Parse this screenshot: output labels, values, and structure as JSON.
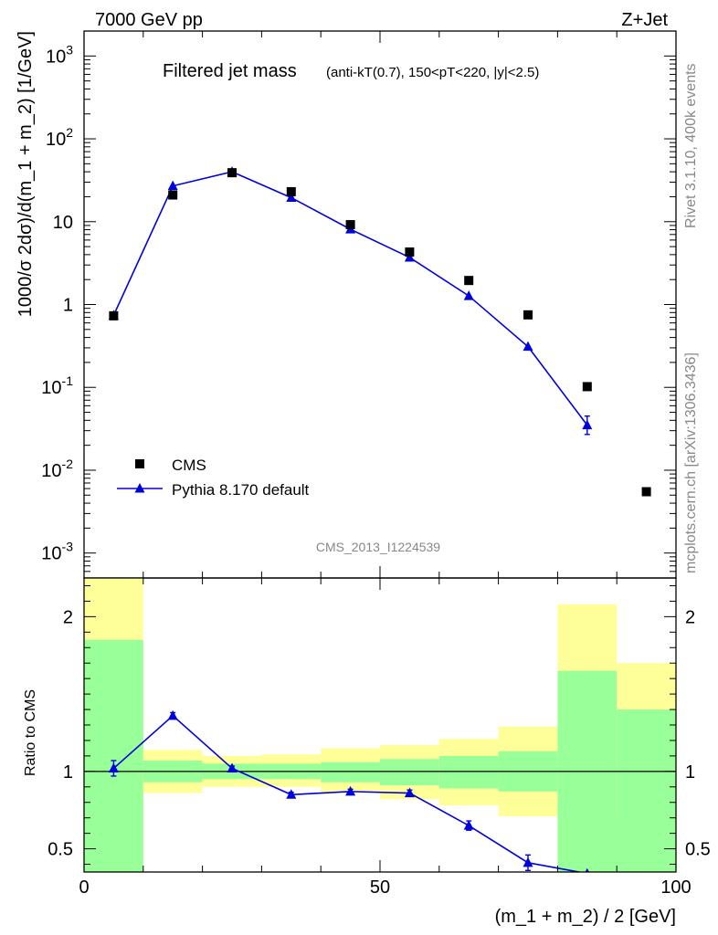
{
  "header": {
    "energy_label": "7000 GeV pp",
    "process_label": "Z+Jet"
  },
  "side_labels": {
    "rivet": "Rivet 3.1.10,  400k events",
    "mcplots": "mcplots.cern.ch [arXiv:1306.3436]"
  },
  "colors": {
    "data_marker": "#000000",
    "mc_line": "#0000dd",
    "band_inner": "#99ff99",
    "band_outer": "#ffff99",
    "ratio_line": "#000000"
  },
  "chart_data": [
    {
      "type": "scatter",
      "panel": "main",
      "title": "Filtered jet mass",
      "subtitle": "(anti-kT(0.7), 150<pT<220, |y|<2.5)",
      "xlabel": "(m_1 + m_2) / 2 [GeV]",
      "ylabel": "1000/σ 2dσ)/d(m_1 + m_2) [1/GeV]",
      "yscale": "log",
      "xlim": [
        0,
        100
      ],
      "ylim": [
        0.0005,
        2000
      ],
      "xticks": [
        0,
        50,
        100
      ],
      "yticks": [
        {
          "value": 0.001,
          "base": "10",
          "exp": "-3"
        },
        {
          "value": 0.01,
          "base": "10",
          "exp": "-2"
        },
        {
          "value": 0.1,
          "base": "10",
          "exp": "-1"
        },
        {
          "value": 1,
          "base": "1",
          "exp": ""
        },
        {
          "value": 10,
          "base": "10",
          "exp": ""
        },
        {
          "value": 100,
          "base": "10",
          "exp": "2"
        },
        {
          "value": 1000,
          "base": "10",
          "exp": "3"
        }
      ],
      "analysis_id": "CMS_2013_I1224539",
      "legend_position": "lower-left",
      "series": [
        {
          "name": "CMS",
          "marker": "square",
          "x": [
            5,
            15,
            25,
            35,
            45,
            55,
            65,
            75,
            85,
            95
          ],
          "values": [
            0.73,
            21,
            39,
            23,
            9.2,
            4.3,
            1.95,
            0.75,
            0.102,
            0.0055
          ]
        },
        {
          "name": "Pythia 8.170 default",
          "marker": "triangle",
          "line": true,
          "x": [
            5,
            15,
            25,
            35,
            45,
            55,
            65,
            75,
            85
          ],
          "values": [
            0.74,
            27,
            40,
            19.5,
            8.1,
            3.7,
            1.27,
            0.31,
            0.035
          ],
          "err_low": [
            0.02,
            0.4,
            0.5,
            0.3,
            0.12,
            0.07,
            0.04,
            0.015,
            0.008
          ],
          "err_high": [
            0.02,
            0.4,
            0.5,
            0.3,
            0.12,
            0.07,
            0.04,
            0.015,
            0.01
          ]
        }
      ]
    },
    {
      "type": "line",
      "panel": "ratio",
      "ylabel": "Ratio to CMS",
      "xlim": [
        0,
        100
      ],
      "ylim": [
        0.35,
        2.25
      ],
      "xticks": [
        0,
        50,
        100
      ],
      "yticks": [
        0.5,
        1,
        2
      ],
      "reference": 1,
      "bands": {
        "bin_edges": [
          0,
          10,
          20,
          30,
          40,
          50,
          60,
          70,
          80,
          90,
          100
        ],
        "inner_low": [
          0.35,
          0.93,
          0.95,
          0.95,
          0.93,
          0.91,
          0.89,
          0.87,
          0.35,
          0.35
        ],
        "inner_high": [
          1.85,
          1.07,
          1.05,
          1.05,
          1.06,
          1.08,
          1.1,
          1.13,
          1.65,
          1.4
        ],
        "outer_low": [
          0.35,
          0.86,
          0.9,
          0.9,
          0.86,
          0.82,
          0.78,
          0.71,
          0.4,
          0.72
        ],
        "outer_high": [
          2.25,
          1.14,
          1.1,
          1.11,
          1.15,
          1.17,
          1.21,
          1.29,
          2.08,
          1.7
        ]
      },
      "series": [
        {
          "name": "Pythia 8.170 default",
          "x": [
            5,
            15,
            25,
            35,
            45,
            55,
            65,
            75,
            85
          ],
          "values": [
            1.02,
            1.36,
            1.02,
            0.85,
            0.87,
            0.86,
            0.65,
            0.41,
            0.34
          ],
          "err": [
            0.05,
            0.02,
            0.015,
            0.015,
            0.015,
            0.02,
            0.03,
            0.05,
            0.0
          ]
        }
      ]
    }
  ]
}
